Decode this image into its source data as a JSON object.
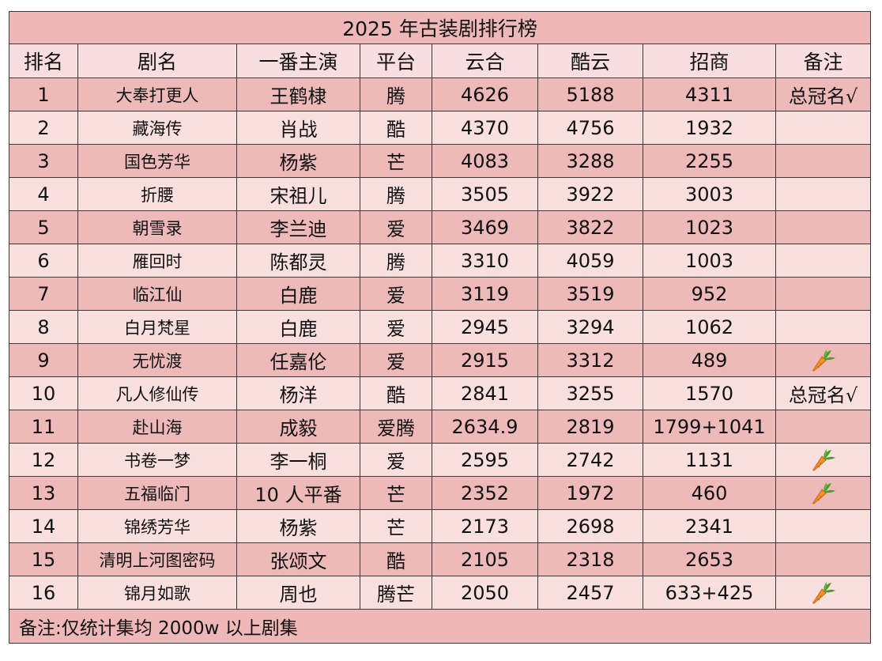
{
  "title": "2025 年古装剧排行榜",
  "columns": [
    "排名",
    "剧名",
    "一番主演",
    "平台",
    "云合",
    "酷云",
    "招商",
    "备注"
  ],
  "rows": [
    {
      "rank": "1",
      "name": "大奉打更人",
      "lead": "王鹤棣",
      "platform": "腾",
      "yunhe": "4626",
      "kuyun": "5188",
      "zhaoshang": "4311",
      "note": "总冠名√",
      "carrot": false
    },
    {
      "rank": "2",
      "name": "藏海传",
      "lead": "肖战",
      "platform": "酷",
      "yunhe": "4370",
      "kuyun": "4756",
      "zhaoshang": "1932",
      "note": "",
      "carrot": false
    },
    {
      "rank": "3",
      "name": "国色芳华",
      "lead": "杨紫",
      "platform": "芒",
      "yunhe": "4083",
      "kuyun": "3288",
      "zhaoshang": "2255",
      "note": "",
      "carrot": false
    },
    {
      "rank": "4",
      "name": "折腰",
      "lead": "宋祖儿",
      "platform": "腾",
      "yunhe": "3505",
      "kuyun": "3922",
      "zhaoshang": "3003",
      "note": "",
      "carrot": false
    },
    {
      "rank": "5",
      "name": "朝雪录",
      "lead": "李兰迪",
      "platform": "爱",
      "yunhe": "3469",
      "kuyun": "3822",
      "zhaoshang": "1023",
      "note": "",
      "carrot": false
    },
    {
      "rank": "6",
      "name": "雁回时",
      "lead": "陈都灵",
      "platform": "腾",
      "yunhe": "3310",
      "kuyun": "4059",
      "zhaoshang": "1003",
      "note": "",
      "carrot": false
    },
    {
      "rank": "7",
      "name": "临江仙",
      "lead": "白鹿",
      "platform": "爱",
      "yunhe": "3119",
      "kuyun": "3519",
      "zhaoshang": "952",
      "note": "",
      "carrot": false
    },
    {
      "rank": "8",
      "name": "白月梵星",
      "lead": "白鹿",
      "platform": "爱",
      "yunhe": "2945",
      "kuyun": "3294",
      "zhaoshang": "1062",
      "note": "",
      "carrot": false
    },
    {
      "rank": "9",
      "name": "无忧渡",
      "lead": "任嘉伦",
      "platform": "爱",
      "yunhe": "2915",
      "kuyun": "3312",
      "zhaoshang": "489",
      "note": "",
      "carrot": true
    },
    {
      "rank": "10",
      "name": "凡人修仙传",
      "lead": "杨洋",
      "platform": "酷",
      "yunhe": "2841",
      "kuyun": "3255",
      "zhaoshang": "1570",
      "note": "总冠名√",
      "carrot": false
    },
    {
      "rank": "11",
      "name": "赴山海",
      "lead": "成毅",
      "platform": "爱腾",
      "yunhe": "2634.9",
      "kuyun": "2819",
      "zhaoshang": "1799+1041",
      "note": "",
      "carrot": false
    },
    {
      "rank": "12",
      "name": "书卷一梦",
      "lead": "李一桐",
      "platform": "爱",
      "yunhe": "2595",
      "kuyun": "2742",
      "zhaoshang": "1131",
      "note": "",
      "carrot": true
    },
    {
      "rank": "13",
      "name": "五福临门",
      "lead": "10 人平番",
      "platform": "芒",
      "yunhe": "2352",
      "kuyun": "1972",
      "zhaoshang": "460",
      "note": "",
      "carrot": true
    },
    {
      "rank": "14",
      "name": "锦绣芳华",
      "lead": "杨紫",
      "platform": "芒",
      "yunhe": "2173",
      "kuyun": "2698",
      "zhaoshang": "2341",
      "note": "",
      "carrot": false
    },
    {
      "rank": "15",
      "name": "清明上河图密码",
      "lead": "张颂文",
      "platform": "酷",
      "yunhe": "2105",
      "kuyun": "2318",
      "zhaoshang": "2653",
      "note": "",
      "carrot": false
    },
    {
      "rank": "16",
      "name": "锦月如歌",
      "lead": "周也",
      "platform": "腾芒",
      "yunhe": "2050",
      "kuyun": "2457",
      "zhaoshang": "633+425",
      "note": "",
      "carrot": true
    }
  ],
  "footnote": "备注:仅统计集均 2000w 以上剧集",
  "colors": {
    "title_bg": "#eeb8b8",
    "header_bg": "#f8dede",
    "row_dark": "#eeb9b9",
    "row_light": "#fadfdf",
    "border": "#3a3a3a",
    "carrot_orange": "#f0902a",
    "carrot_leaf": "#4f9a2e"
  },
  "icons": {
    "note_icon": "carrot-icon"
  }
}
